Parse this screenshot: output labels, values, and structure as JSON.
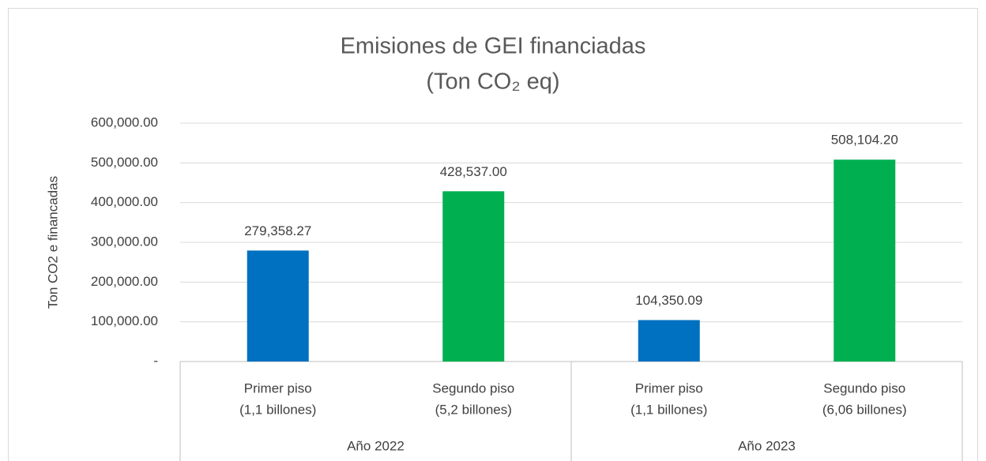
{
  "chart_data": {
    "type": "bar",
    "title": [
      "Emisiones de GEI financiadas",
      "(Ton CO₂ eq)"
    ],
    "y_label": "Ton CO2 e financadas",
    "groups": [
      "Año 2022",
      "Año 2023"
    ],
    "categories": [
      [
        "Primer piso",
        "(1,1 billones)"
      ],
      [
        "Segundo piso",
        "(5,2 billones)"
      ],
      [
        "Primer piso",
        "(1,1 billones)"
      ],
      [
        "Segundo piso",
        "(6,06 billones)"
      ]
    ],
    "values": [
      279358.27,
      428537.0,
      104350.09,
      508104.2
    ],
    "value_labels": [
      "279,358.27",
      "428,537.00",
      "104,350.09",
      "508,104.20"
    ],
    "colors": [
      "#0070c0",
      "#00b050",
      "#0070c0",
      "#00b050"
    ],
    "ylim": [
      0,
      600000
    ],
    "yticks": [
      {
        "value": 0,
        "label": "-"
      },
      {
        "value": 100000,
        "label": "100,000.00"
      },
      {
        "value": 200000,
        "label": "200,000.00"
      },
      {
        "value": 300000,
        "label": "300,000.00"
      },
      {
        "value": 400000,
        "label": "400,000.00"
      },
      {
        "value": 500000,
        "label": "500,000.00"
      },
      {
        "value": 600000,
        "label": "600,000.00"
      }
    ],
    "grid": true
  }
}
